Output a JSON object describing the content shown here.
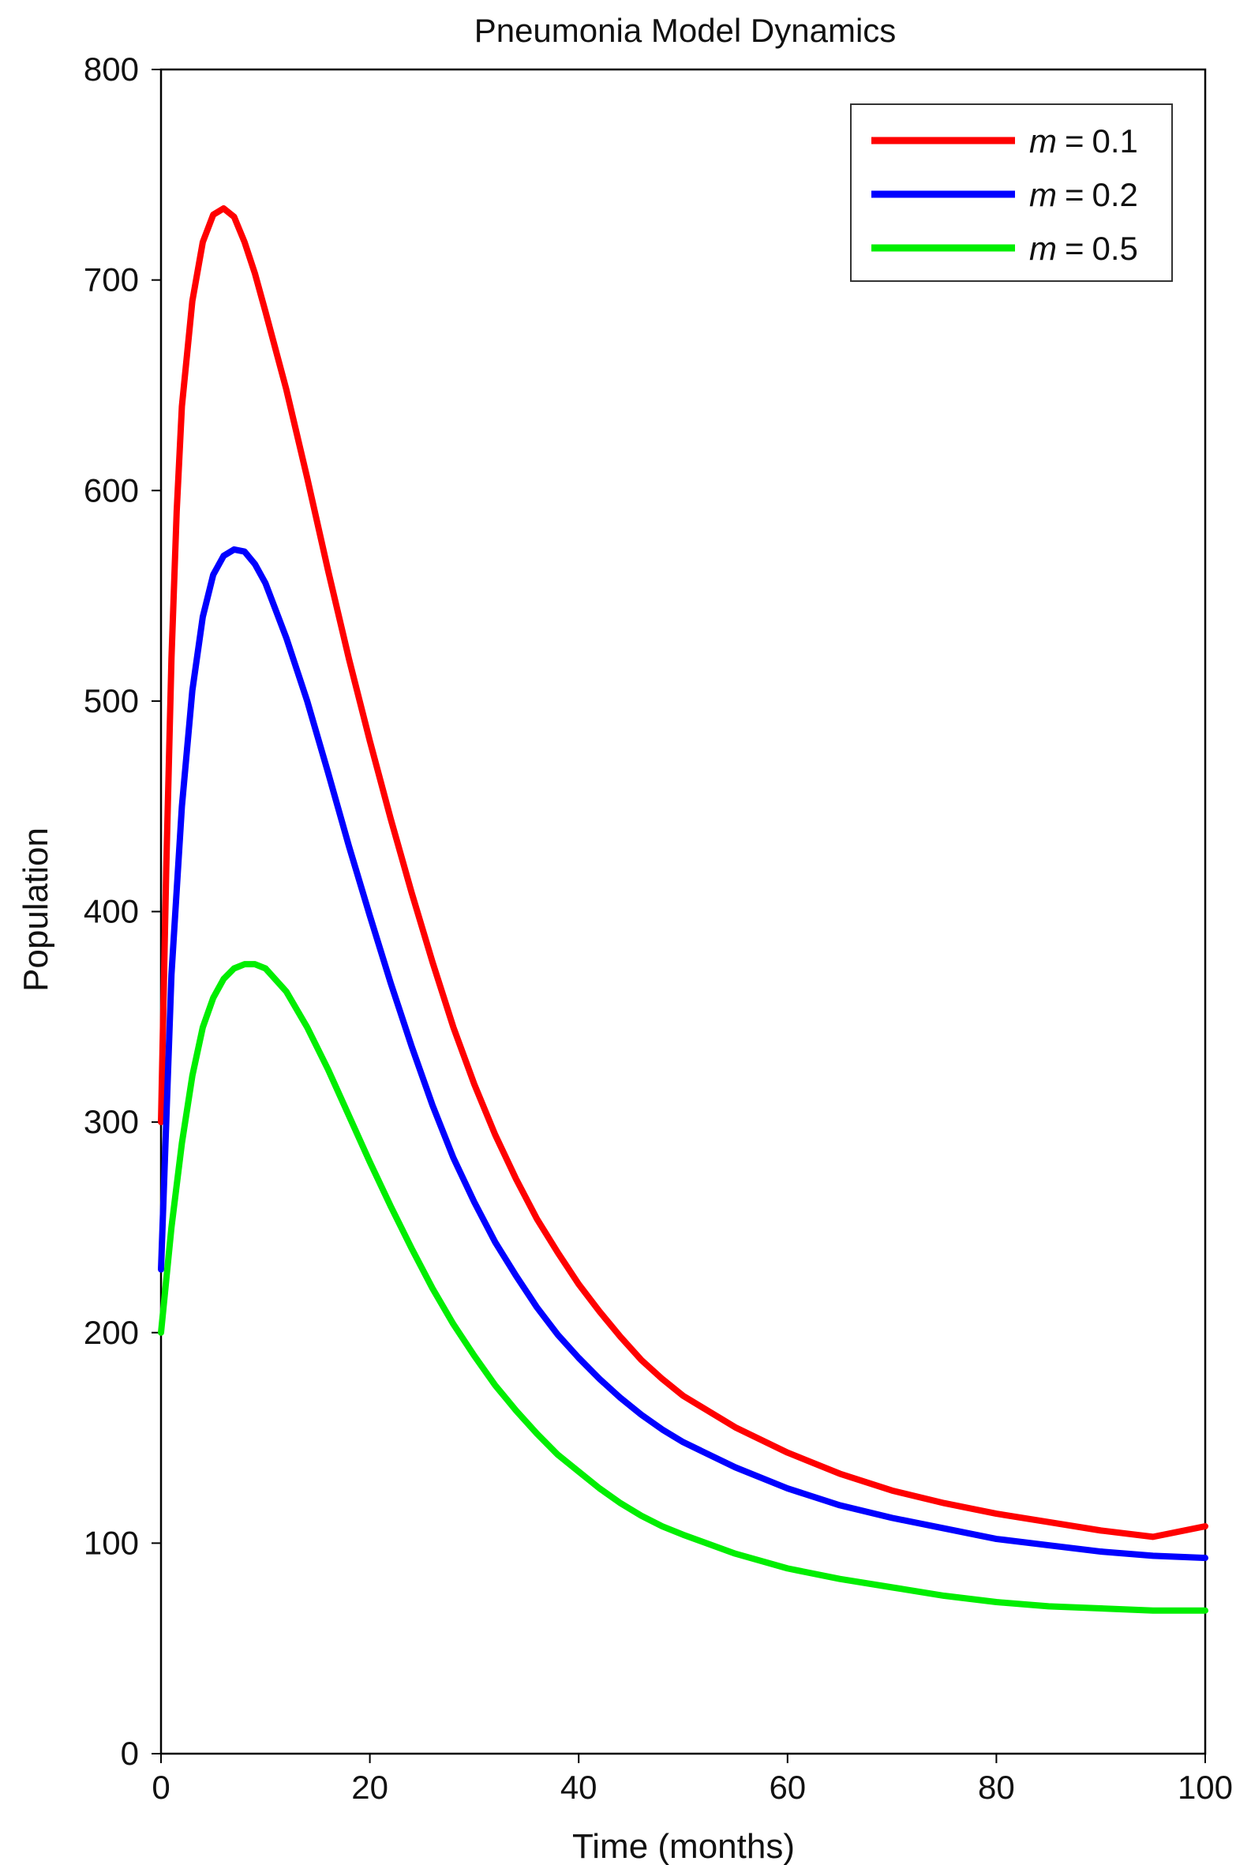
{
  "chart_data": {
    "type": "line",
    "title": "Pneumonia Model Dynamics",
    "xlabel": "Time (months)",
    "ylabel": "Population",
    "xlim": [
      0,
      100
    ],
    "ylim": [
      0,
      800
    ],
    "xticks": [
      "0",
      "20",
      "40",
      "60",
      "80",
      "100"
    ],
    "yticks": [
      "0",
      "100",
      "200",
      "300",
      "400",
      "500",
      "600",
      "700",
      "800"
    ],
    "grid": false,
    "legend_position": "top-right",
    "legend_variable": "m",
    "legend_equals": "=",
    "series": [
      {
        "name": "m = 0.1",
        "param": "0.1",
        "color": "#ff0000",
        "points": [
          [
            0,
            300
          ],
          [
            0.5,
            420
          ],
          [
            1,
            520
          ],
          [
            1.5,
            590
          ],
          [
            2,
            640
          ],
          [
            3,
            690
          ],
          [
            4,
            718
          ],
          [
            5,
            731
          ],
          [
            6,
            734
          ],
          [
            7,
            730
          ],
          [
            8,
            718
          ],
          [
            9,
            703
          ],
          [
            10,
            685
          ],
          [
            12,
            648
          ],
          [
            14,
            606
          ],
          [
            16,
            562
          ],
          [
            18,
            520
          ],
          [
            20,
            481
          ],
          [
            22,
            444
          ],
          [
            24,
            409
          ],
          [
            26,
            376
          ],
          [
            28,
            345
          ],
          [
            30,
            318
          ],
          [
            32,
            294
          ],
          [
            34,
            273
          ],
          [
            36,
            254
          ],
          [
            38,
            238
          ],
          [
            40,
            223
          ],
          [
            42,
            210
          ],
          [
            44,
            198
          ],
          [
            46,
            187
          ],
          [
            48,
            178
          ],
          [
            50,
            170
          ],
          [
            55,
            155
          ],
          [
            60,
            143
          ],
          [
            65,
            133
          ],
          [
            70,
            125
          ],
          [
            75,
            119
          ],
          [
            80,
            114
          ],
          [
            85,
            110
          ],
          [
            90,
            106
          ],
          [
            95,
            103
          ],
          [
            100,
            108
          ]
        ]
      },
      {
        "name": "m = 0.2",
        "param": "0.2",
        "color": "#0000ff",
        "points": [
          [
            0,
            230
          ],
          [
            0.5,
            300
          ],
          [
            1,
            370
          ],
          [
            2,
            450
          ],
          [
            3,
            505
          ],
          [
            4,
            540
          ],
          [
            5,
            560
          ],
          [
            6,
            569
          ],
          [
            7,
            572
          ],
          [
            8,
            571
          ],
          [
            9,
            565
          ],
          [
            10,
            556
          ],
          [
            12,
            530
          ],
          [
            14,
            500
          ],
          [
            16,
            466
          ],
          [
            18,
            431
          ],
          [
            20,
            398
          ],
          [
            22,
            366
          ],
          [
            24,
            336
          ],
          [
            26,
            308
          ],
          [
            28,
            283
          ],
          [
            30,
            262
          ],
          [
            32,
            243
          ],
          [
            34,
            227
          ],
          [
            36,
            212
          ],
          [
            38,
            199
          ],
          [
            40,
            188
          ],
          [
            42,
            178
          ],
          [
            44,
            169
          ],
          [
            46,
            161
          ],
          [
            48,
            154
          ],
          [
            50,
            148
          ],
          [
            55,
            136
          ],
          [
            60,
            126
          ],
          [
            65,
            118
          ],
          [
            70,
            112
          ],
          [
            75,
            107
          ],
          [
            80,
            102
          ],
          [
            85,
            99
          ],
          [
            90,
            96
          ],
          [
            95,
            94
          ],
          [
            100,
            93
          ]
        ]
      },
      {
        "name": "m = 0.5",
        "param": "0.5",
        "color": "#00ee00",
        "points": [
          [
            0,
            200
          ],
          [
            1,
            250
          ],
          [
            2,
            290
          ],
          [
            3,
            322
          ],
          [
            4,
            345
          ],
          [
            5,
            359
          ],
          [
            6,
            368
          ],
          [
            7,
            373
          ],
          [
            8,
            375
          ],
          [
            9,
            375
          ],
          [
            10,
            373
          ],
          [
            12,
            362
          ],
          [
            14,
            345
          ],
          [
            16,
            325
          ],
          [
            18,
            303
          ],
          [
            20,
            281
          ],
          [
            22,
            260
          ],
          [
            24,
            240
          ],
          [
            26,
            221
          ],
          [
            28,
            204
          ],
          [
            30,
            189
          ],
          [
            32,
            175
          ],
          [
            34,
            163
          ],
          [
            36,
            152
          ],
          [
            38,
            142
          ],
          [
            40,
            134
          ],
          [
            42,
            126
          ],
          [
            44,
            119
          ],
          [
            46,
            113
          ],
          [
            48,
            108
          ],
          [
            50,
            104
          ],
          [
            55,
            95
          ],
          [
            60,
            88
          ],
          [
            65,
            83
          ],
          [
            70,
            79
          ],
          [
            75,
            75
          ],
          [
            80,
            72
          ],
          [
            85,
            70
          ],
          [
            90,
            69
          ],
          [
            95,
            68
          ],
          [
            100,
            68
          ]
        ]
      }
    ]
  }
}
